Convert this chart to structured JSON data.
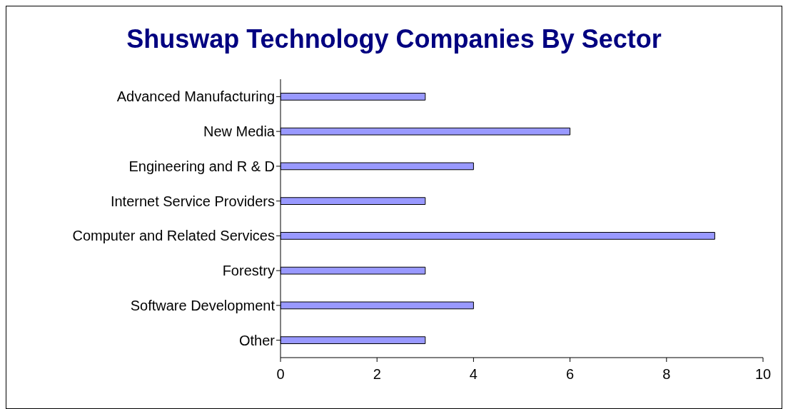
{
  "chart_data": {
    "type": "bar",
    "orientation": "horizontal",
    "title": "Shuswap Technology Companies By Sector",
    "categories": [
      "Advanced Manufacturing",
      "New Media",
      "Engineering and R & D",
      "Internet Service Providers",
      "Computer and Related Services",
      "Forestry",
      "Software Development",
      "Other"
    ],
    "values": [
      3,
      6,
      4,
      3,
      9,
      3,
      4,
      3
    ],
    "color": "#9999ff",
    "xlim": [
      0,
      10
    ],
    "xticks": [
      0,
      2,
      4,
      6,
      8,
      10
    ]
  }
}
